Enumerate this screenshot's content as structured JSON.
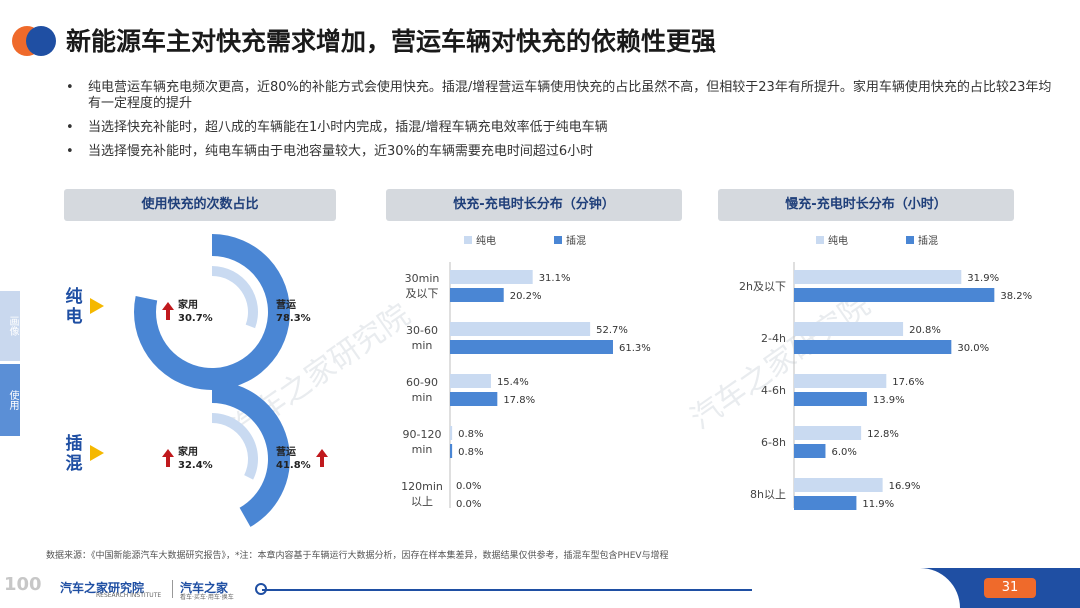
{
  "title": "新能源车主对快充需求增加，营运车辆对快充的依赖性更强",
  "bullets": [
    "纯电营运车辆充电频次更高，近80%的补能方式会使用快充。插混/增程营运车辆使用快充的占比虽然不高，但相较于23年有所提升。家用车辆使用快充的占比较23年均有一定程度的提升",
    "当选择快充补能时，超八成的车辆能在1小时内完成，插混/增程车辆充电效率低于纯电车辆",
    "当选择慢充补能时，纯电车辆由于电池容量较大，近30%的车辆需要充电时间超过6小时"
  ],
  "bullet_mark": "•",
  "panels": {
    "donut_header": "使用快充的次数占比",
    "fast_header": "快充-充电时长分布（分钟）",
    "slow_header": "慢充-充电时长分布（小时）"
  },
  "side_tabs": [
    "画像",
    "使用"
  ],
  "watermark": "汽车之家研究院",
  "colors": {
    "bev": "#c9daf1",
    "phev": "#4a86d4",
    "accent": "#f5b800",
    "arrow": "#c0191d",
    "brand": "#1f4fa3",
    "orange": "#ef6a2b"
  },
  "chart_data": [
    {
      "type": "pie",
      "subtype": "double-donut",
      "title": "使用快充的次数占比",
      "groups": [
        {
          "name": "纯电",
          "slices": [
            {
              "label": "家用",
              "value": 30.7,
              "display": "30.7%",
              "trend": "up"
            },
            {
              "label": "营运",
              "value": 78.3,
              "display": "78.3%",
              "trend": ""
            }
          ]
        },
        {
          "name": "插混",
          "slices": [
            {
              "label": "家用",
              "value": 32.4,
              "display": "32.4%",
              "trend": "up"
            },
            {
              "label": "营运",
              "value": 41.8,
              "display": "41.8%",
              "trend": "up"
            }
          ]
        }
      ]
    },
    {
      "type": "bar",
      "orientation": "horizontal",
      "title": "快充-充电时长分布（分钟）",
      "categories": [
        [
          "30min",
          "及以下"
        ],
        [
          "30-60",
          "min"
        ],
        [
          "60-90",
          "min"
        ],
        [
          "90-120",
          "min"
        ],
        [
          "120min",
          "以上"
        ]
      ],
      "series": [
        {
          "name": "纯电",
          "values": [
            31.1,
            52.7,
            15.4,
            0.8,
            0.0
          ],
          "labels": [
            "31.1%",
            "52.7%",
            "15.4%",
            "0.8%",
            "0.0%"
          ]
        },
        {
          "name": "插混",
          "values": [
            20.2,
            61.3,
            17.8,
            0.8,
            0.0
          ],
          "labels": [
            "20.2%",
            "61.3%",
            "17.8%",
            "0.8%",
            "0.0%"
          ]
        }
      ],
      "xlim": [
        0,
        85
      ],
      "legend": "top"
    },
    {
      "type": "bar",
      "orientation": "horizontal",
      "title": "慢充-充电时长分布（小时）",
      "categories": [
        [
          "2h及以下"
        ],
        [
          "2-4h"
        ],
        [
          "4-6h"
        ],
        [
          "6-8h"
        ],
        [
          "8h以上"
        ]
      ],
      "series": [
        {
          "name": "纯电",
          "values": [
            31.9,
            20.8,
            17.6,
            12.8,
            16.9
          ],
          "labels": [
            "31.9%",
            "20.8%",
            "17.6%",
            "12.8%",
            "16.9%"
          ]
        },
        {
          "name": "插混",
          "values": [
            38.2,
            30.0,
            13.9,
            6.0,
            11.9
          ],
          "labels": [
            "38.2%",
            "30.0%",
            "13.9%",
            "6.0%",
            "11.9%"
          ]
        }
      ],
      "xlim": [
        0,
        45
      ],
      "legend": "top"
    }
  ],
  "footer": {
    "source": "数据来源：《中国新能源汽车大数据研究报告》，*注：本章内容基于车辆运行大数据分析，因存在样本集差异，数据结果仅供参考，插混车型包含PHEV与增程",
    "logo_left": "汽车之家研究院",
    "logo_left_sub": "RESEARCH INSTITUTE",
    "logo_right": "汽车之家",
    "logo_right_sub": "看车·买车·用车·换车",
    "page_number": "31",
    "corner_mark": "100"
  }
}
